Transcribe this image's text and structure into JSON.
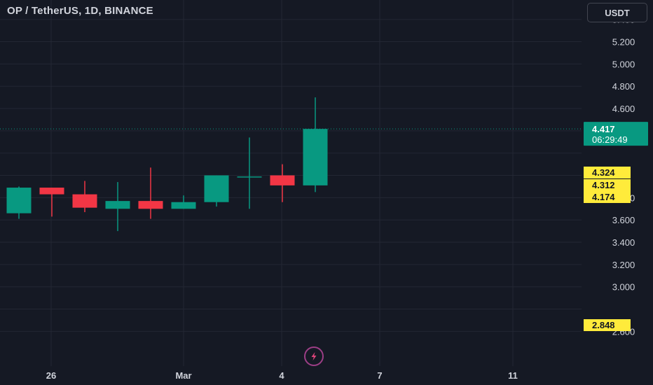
{
  "header": {
    "symbol": "OP / TetherUS, 1D, BINANCE",
    "currency": "USDT"
  },
  "colors": {
    "background": "#151924",
    "grid": "#232733",
    "up": "#089981",
    "down": "#f23645",
    "axis_text": "#d1d4dc",
    "highlight_label": "#ffeb3b",
    "current_price_label": "#089981"
  },
  "chart_data": {
    "type": "candlestick",
    "title": "OP / TetherUS, 1D, BINANCE",
    "ylim": [
      2.5,
      5.55
    ],
    "y_ticks": [
      "5.400",
      "5.200",
      "5.000",
      "4.800",
      "4.600",
      "3.800",
      "3.600",
      "3.400",
      "3.200",
      "3.000",
      "2.600"
    ],
    "x_ticks": [
      "26",
      "Mar",
      "4",
      "7",
      "11"
    ],
    "grid": true,
    "candles": [
      {
        "open": 3.66,
        "high": 3.9,
        "low": 3.61,
        "close": 3.89
      },
      {
        "open": 3.89,
        "high": 3.89,
        "low": 3.63,
        "close": 3.83
      },
      {
        "open": 3.83,
        "high": 3.95,
        "low": 3.67,
        "close": 3.71
      },
      {
        "open": 3.7,
        "high": 3.94,
        "low": 3.5,
        "close": 3.77
      },
      {
        "open": 3.77,
        "high": 4.07,
        "low": 3.61,
        "close": 3.7
      },
      {
        "open": 3.7,
        "high": 3.82,
        "low": 3.7,
        "close": 3.76
      },
      {
        "open": 3.76,
        "high": 4.0,
        "low": 3.72,
        "close": 4.0
      },
      {
        "open": 3.99,
        "high": 4.34,
        "low": 3.7,
        "close": 3.99
      },
      {
        "open": 4.0,
        "high": 4.1,
        "low": 3.76,
        "close": 3.91
      },
      {
        "open": 3.91,
        "high": 4.7,
        "low": 3.85,
        "close": 4.417
      }
    ],
    "current_price": {
      "value": "4.417",
      "countdown": "06:29:49"
    },
    "price_labels": [
      "4.324",
      "4.312",
      "4.174",
      "2.848"
    ]
  }
}
